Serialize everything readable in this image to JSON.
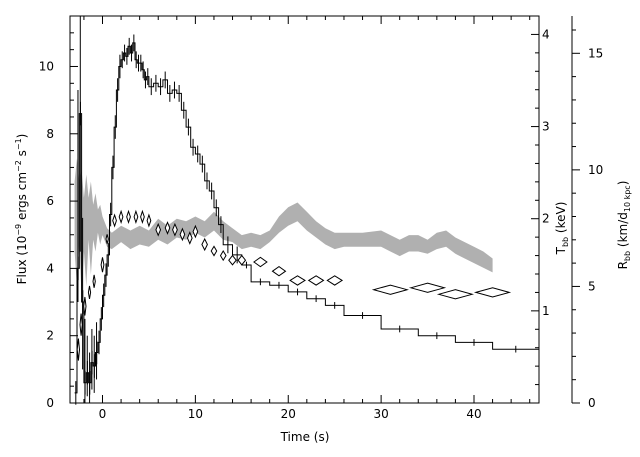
{
  "chart_data": {
    "type": "line",
    "xlabel": "Time (s)",
    "ylabel_left": {
      "main": "Flux (10",
      "exp1": "−9",
      "mid": " ergs cm",
      "exp2": "−2",
      "mid2": " s",
      "exp3": "−1",
      "end": ")"
    },
    "ylabel_right_1": {
      "main": "T",
      "sub": "bb",
      "end": " (keV)"
    },
    "ylabel_right_2": {
      "main": "R",
      "sub": "bb",
      "mid": " (km/d",
      "sub2": "10 kpc",
      "end": ")"
    },
    "xlim": [
      -3.5,
      47
    ],
    "ylim_left": [
      0,
      11.5
    ],
    "ylim_right_T": [
      0.0,
      4.2
    ],
    "ylim_right_R": [
      0,
      16.6
    ],
    "x_ticks": [
      "0",
      "10",
      "20",
      "30",
      "40"
    ],
    "x_tick_values": [
      0,
      10,
      20,
      30,
      40
    ],
    "left_ticks": [
      "0",
      "2",
      "4",
      "6",
      "8",
      "10"
    ],
    "left_tick_values": [
      0,
      2,
      4,
      6,
      8,
      10
    ],
    "T_ticks": [
      "1",
      "2",
      "3",
      "4"
    ],
    "T_tick_values": [
      1,
      2,
      3,
      4
    ],
    "R_ticks": [
      "0",
      "5",
      "10",
      "15"
    ],
    "R_tick_values": [
      0,
      5,
      10,
      15
    ],
    "series": [
      {
        "kind": "flux-step",
        "color": "#000000",
        "points": [
          [
            -3.0,
            0.3
          ],
          [
            -2.75,
            4.0
          ],
          [
            -2.5,
            8.6
          ],
          [
            -2.25,
            3.0
          ],
          [
            -2.0,
            0.6
          ],
          [
            -1.75,
            0.9
          ],
          [
            -1.5,
            0.6
          ],
          [
            -1.25,
            1.2
          ],
          [
            -1.0,
            1.1
          ],
          [
            -0.75,
            1.5
          ],
          [
            -0.5,
            1.8
          ],
          [
            -0.25,
            2.5
          ],
          [
            0.0,
            3.2
          ],
          [
            0.25,
            3.8
          ],
          [
            0.5,
            4.4
          ],
          [
            0.75,
            5.6
          ],
          [
            1.0,
            7.0
          ],
          [
            1.25,
            8.2
          ],
          [
            1.5,
            9.3
          ],
          [
            1.75,
            10.0
          ],
          [
            2.0,
            10.2
          ],
          [
            2.25,
            10.4
          ],
          [
            2.5,
            10.3
          ],
          [
            2.75,
            10.6
          ],
          [
            3.0,
            10.4
          ],
          [
            3.25,
            10.7
          ],
          [
            3.5,
            10.2
          ],
          [
            3.75,
            10.1
          ],
          [
            4.0,
            10.1
          ],
          [
            4.25,
            9.9
          ],
          [
            4.5,
            9.6
          ],
          [
            4.75,
            9.7
          ],
          [
            5.0,
            9.4
          ],
          [
            5.5,
            9.5
          ],
          [
            6.0,
            9.4
          ],
          [
            6.5,
            9.6
          ],
          [
            7.0,
            9.2
          ],
          [
            7.5,
            9.3
          ],
          [
            8.0,
            9.2
          ],
          [
            8.5,
            8.7
          ],
          [
            9.0,
            8.2
          ],
          [
            9.5,
            7.6
          ],
          [
            10.0,
            7.4
          ],
          [
            10.5,
            7.1
          ],
          [
            11.0,
            6.6
          ],
          [
            11.5,
            6.3
          ],
          [
            12.0,
            5.8
          ],
          [
            12.5,
            5.3
          ],
          [
            13.0,
            4.7
          ],
          [
            14.0,
            4.4
          ],
          [
            15.0,
            4.1
          ],
          [
            16.0,
            3.6
          ],
          [
            18.0,
            3.5
          ],
          [
            20.0,
            3.3
          ],
          [
            22.0,
            3.1
          ],
          [
            24.0,
            2.9
          ],
          [
            26.0,
            2.6
          ],
          [
            30.0,
            2.2
          ],
          [
            34.0,
            2.0
          ],
          [
            38.0,
            1.8
          ],
          [
            42.0,
            1.6
          ],
          [
            47.0,
            1.6
          ]
        ],
        "error_large": [
          [
            -2.75,
            3.0,
            9.3
          ],
          [
            -2.5,
            4.5,
            11.5
          ],
          [
            -2.25,
            1.0,
            5.5
          ],
          [
            -2.0,
            0.0,
            2.5
          ],
          [
            -1.75,
            0.2,
            2.0
          ],
          [
            -1.5,
            0.0,
            1.5
          ],
          [
            -1.25,
            0.4,
            2.2
          ],
          [
            -1.0,
            0.3,
            2.0
          ],
          [
            -0.75,
            0.7,
            2.4
          ]
        ]
      },
      {
        "kind": "temperature-diamonds",
        "axis": "T",
        "color": "#000000",
        "points": [
          [
            -2.6,
            0.58,
            0.12,
            0.12
          ],
          [
            -2.3,
            0.85,
            0.12,
            0.12
          ],
          [
            -1.9,
            1.05,
            0.12,
            0.1
          ],
          [
            -1.4,
            1.2,
            0.12,
            0.07
          ],
          [
            -0.9,
            1.32,
            0.12,
            0.07
          ],
          [
            0.0,
            1.5,
            0.15,
            0.08
          ],
          [
            0.5,
            1.78,
            0.12,
            0.05
          ],
          [
            1.3,
            1.98,
            0.2,
            0.06
          ],
          [
            2.0,
            2.02,
            0.2,
            0.06
          ],
          [
            2.8,
            2.02,
            0.2,
            0.06
          ],
          [
            3.6,
            2.02,
            0.2,
            0.06
          ],
          [
            4.3,
            2.02,
            0.2,
            0.06
          ],
          [
            5.0,
            1.98,
            0.2,
            0.06
          ],
          [
            6.0,
            1.88,
            0.25,
            0.06
          ],
          [
            7.0,
            1.9,
            0.25,
            0.06
          ],
          [
            7.8,
            1.88,
            0.25,
            0.06
          ],
          [
            8.6,
            1.83,
            0.25,
            0.06
          ],
          [
            9.4,
            1.79,
            0.25,
            0.06
          ],
          [
            10.0,
            1.86,
            0.25,
            0.06
          ],
          [
            11.0,
            1.72,
            0.3,
            0.06
          ],
          [
            12.0,
            1.65,
            0.3,
            0.05
          ],
          [
            13.0,
            1.6,
            0.3,
            0.05
          ],
          [
            14.0,
            1.55,
            0.4,
            0.05
          ],
          [
            15.0,
            1.55,
            0.4,
            0.05
          ],
          [
            17.0,
            1.53,
            0.7,
            0.05
          ],
          [
            19.0,
            1.43,
            0.7,
            0.05
          ],
          [
            21.0,
            1.33,
            0.8,
            0.05
          ],
          [
            23.0,
            1.33,
            0.8,
            0.05
          ],
          [
            25.0,
            1.33,
            0.8,
            0.05
          ],
          [
            31.0,
            1.23,
            1.8,
            0.05
          ],
          [
            35.0,
            1.25,
            1.8,
            0.05
          ],
          [
            38.0,
            1.18,
            1.8,
            0.05
          ],
          [
            42.0,
            1.2,
            1.8,
            0.05
          ]
        ]
      },
      {
        "kind": "radius-band",
        "axis": "R",
        "color": "#b0b0b0",
        "points": [
          [
            -3.0,
            6.5,
            9.5
          ],
          [
            -2.75,
            5.0,
            10.5
          ],
          [
            -2.5,
            7.0,
            9.5
          ],
          [
            -2.25,
            4.5,
            10.0
          ],
          [
            -2.0,
            6.5,
            8.8
          ],
          [
            -1.75,
            5.0,
            9.8
          ],
          [
            -1.5,
            7.0,
            8.8
          ],
          [
            -1.25,
            5.5,
            9.5
          ],
          [
            -1.0,
            7.0,
            8.5
          ],
          [
            -0.75,
            6.5,
            9.0
          ],
          [
            -0.5,
            7.3,
            8.3
          ],
          [
            -0.25,
            6.8,
            8.5
          ],
          [
            0.0,
            7.2,
            8.0
          ],
          [
            0.5,
            6.7,
            7.5
          ],
          [
            1.0,
            6.6,
            7.3
          ],
          [
            2.0,
            6.9,
            7.6
          ],
          [
            3.0,
            6.6,
            7.4
          ],
          [
            4.0,
            6.8,
            7.6
          ],
          [
            5.0,
            6.7,
            7.4
          ],
          [
            6.0,
            7.0,
            7.9
          ],
          [
            7.0,
            6.8,
            7.6
          ],
          [
            8.0,
            7.1,
            7.9
          ],
          [
            9.0,
            7.0,
            7.8
          ],
          [
            10.0,
            7.3,
            8.0
          ],
          [
            11.0,
            7.1,
            7.8
          ],
          [
            12.0,
            7.4,
            8.2
          ],
          [
            13.0,
            7.0,
            7.8
          ],
          [
            14.0,
            6.9,
            7.5
          ],
          [
            15.0,
            6.6,
            7.2
          ],
          [
            16.0,
            6.7,
            7.3
          ],
          [
            17.0,
            6.6,
            7.2
          ],
          [
            18.0,
            6.9,
            7.4
          ],
          [
            19.0,
            7.3,
            8.0
          ],
          [
            20.0,
            7.6,
            8.4
          ],
          [
            21.0,
            7.8,
            8.6
          ],
          [
            22.0,
            7.4,
            8.2
          ],
          [
            23.0,
            7.1,
            7.8
          ],
          [
            24.0,
            6.8,
            7.5
          ],
          [
            25.0,
            6.6,
            7.3
          ],
          [
            26.0,
            6.7,
            7.3
          ],
          [
            28.0,
            6.7,
            7.3
          ],
          [
            30.0,
            6.7,
            7.4
          ],
          [
            31.0,
            6.5,
            7.2
          ],
          [
            32.0,
            6.3,
            7.0
          ],
          [
            33.0,
            6.5,
            7.2
          ],
          [
            34.0,
            6.5,
            7.2
          ],
          [
            35.0,
            6.4,
            7.0
          ],
          [
            36.0,
            6.6,
            7.3
          ],
          [
            37.0,
            6.7,
            7.4
          ],
          [
            38.0,
            6.4,
            7.1
          ],
          [
            39.0,
            6.2,
            6.9
          ],
          [
            40.0,
            6.0,
            6.7
          ],
          [
            41.0,
            5.8,
            6.5
          ],
          [
            42.0,
            5.6,
            6.2
          ]
        ]
      }
    ]
  }
}
